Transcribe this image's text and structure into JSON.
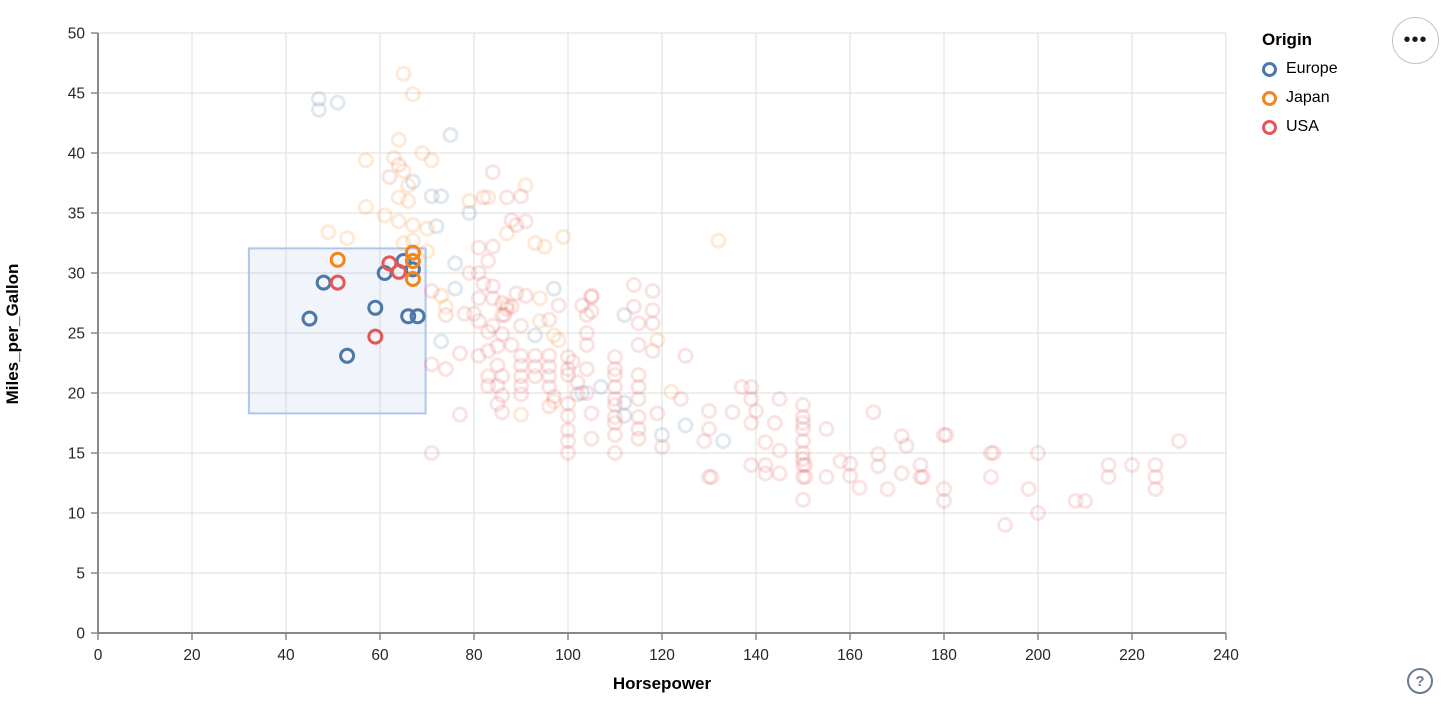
{
  "widgets": {
    "menu_button_glyph": "•••",
    "help_button_glyph": "?"
  },
  "chart_data": {
    "type": "scatter",
    "title": "",
    "xlabel": "Horsepower",
    "ylabel": "Miles_per_Gallon",
    "xlim": [
      0,
      240
    ],
    "ylim": [
      0,
      50
    ],
    "x_ticks": [
      0,
      20,
      40,
      60,
      80,
      100,
      120,
      140,
      160,
      180,
      200,
      220,
      240
    ],
    "y_ticks": [
      0,
      5,
      10,
      15,
      20,
      25,
      30,
      35,
      40,
      45,
      50
    ],
    "grid": true,
    "legend": {
      "title": "Origin",
      "position": "top-right",
      "entries": [
        {
          "label": "Europe",
          "color": "#4c78a8"
        },
        {
          "label": "Japan",
          "color": "#f58518"
        },
        {
          "label": "USA",
          "color": "#e45756"
        }
      ]
    },
    "colors": {
      "E": "#4c78a8",
      "J": "#f58518",
      "U": "#e45756"
    },
    "origin_names": {
      "E": "Europe",
      "J": "Japan",
      "U": "USA"
    },
    "style": {
      "grid_color": "#dddddd",
      "axis_color": "#888888",
      "label_color": "#262626",
      "point_radius": 6.5,
      "point_stroke_width": 3,
      "faded_opacity": 0.17,
      "brush_fill": "rgba(114,159,219,0.10)",
      "brush_stroke": "#aec6ee"
    },
    "brush": {
      "hp": [
        32.1,
        69.7
      ],
      "mpg": [
        18.3,
        32.05
      ]
    },
    "points": [
      [
        45,
        26.2,
        "E"
      ],
      [
        48,
        29.2,
        "E"
      ],
      [
        53,
        23.1,
        "E"
      ],
      [
        59,
        27.1,
        "E"
      ],
      [
        61,
        30,
        "E"
      ],
      [
        65,
        31,
        "E"
      ],
      [
        67,
        30.3,
        "E"
      ],
      [
        66,
        26.4,
        "E"
      ],
      [
        68,
        26.4,
        "E"
      ],
      [
        51,
        31.1,
        "J"
      ],
      [
        67,
        31.7,
        "J"
      ],
      [
        67,
        31,
        "J"
      ],
      [
        67,
        29.5,
        "J"
      ],
      [
        51,
        29.2,
        "U"
      ],
      [
        59,
        24.7,
        "U"
      ],
      [
        62,
        30.8,
        "U"
      ],
      [
        64,
        30.1,
        "U"
      ],
      [
        47,
        44.5,
        "E"
      ],
      [
        47,
        43.6,
        "E"
      ],
      [
        51,
        44.2,
        "E"
      ],
      [
        75,
        41.5,
        "E"
      ],
      [
        67,
        37.6,
        "E"
      ],
      [
        71,
        36.4,
        "E"
      ],
      [
        73,
        36.4,
        "E"
      ],
      [
        72,
        33.9,
        "E"
      ],
      [
        79,
        35,
        "E"
      ],
      [
        76,
        30.8,
        "E"
      ],
      [
        76,
        28.7,
        "E"
      ],
      [
        73,
        24.3,
        "E"
      ],
      [
        93,
        24.8,
        "E"
      ],
      [
        97,
        28.7,
        "E"
      ],
      [
        103,
        20,
        "E"
      ],
      [
        107,
        20.5,
        "E"
      ],
      [
        112,
        26.5,
        "E"
      ],
      [
        112,
        19.2,
        "E"
      ],
      [
        112,
        18.1,
        "E"
      ],
      [
        120,
        16.5,
        "E"
      ],
      [
        125,
        17.3,
        "E"
      ],
      [
        133,
        16,
        "E"
      ],
      [
        65,
        46.6,
        "J"
      ],
      [
        67,
        44.9,
        "J"
      ],
      [
        64,
        41.1,
        "J"
      ],
      [
        69,
        40,
        "J"
      ],
      [
        57,
        39.4,
        "J"
      ],
      [
        63,
        39.6,
        "J"
      ],
      [
        71,
        39.4,
        "J"
      ],
      [
        65,
        38.5,
        "J"
      ],
      [
        66,
        37.3,
        "J"
      ],
      [
        64,
        36.3,
        "J"
      ],
      [
        66,
        36,
        "J"
      ],
      [
        79,
        36,
        "J"
      ],
      [
        83,
        36.3,
        "J"
      ],
      [
        91,
        37.3,
        "J"
      ],
      [
        87,
        33.3,
        "J"
      ],
      [
        49,
        33.4,
        "J"
      ],
      [
        53,
        32.9,
        "J"
      ],
      [
        57,
        35.5,
        "J"
      ],
      [
        61,
        34.8,
        "J"
      ],
      [
        64,
        34.3,
        "J"
      ],
      [
        67,
        34,
        "J"
      ],
      [
        70,
        33.7,
        "J"
      ],
      [
        65,
        32.5,
        "J"
      ],
      [
        67,
        32.7,
        "J"
      ],
      [
        70,
        31.8,
        "J"
      ],
      [
        93,
        32.5,
        "J"
      ],
      [
        95,
        32.2,
        "J"
      ],
      [
        99,
        33,
        "J"
      ],
      [
        132,
        32.7,
        "J"
      ],
      [
        73,
        28.1,
        "J"
      ],
      [
        74,
        27.2,
        "J"
      ],
      [
        87,
        27.3,
        "J"
      ],
      [
        94,
        27.9,
        "J"
      ],
      [
        94,
        26,
        "J"
      ],
      [
        97,
        24.8,
        "J"
      ],
      [
        98,
        24.4,
        "J"
      ],
      [
        90,
        18.2,
        "J"
      ],
      [
        97,
        19.3,
        "J"
      ],
      [
        119,
        24.4,
        "J"
      ],
      [
        122,
        20.1,
        "J"
      ],
      [
        64,
        39,
        "U"
      ],
      [
        62,
        38,
        "U"
      ],
      [
        84,
        38.4,
        "U"
      ],
      [
        90,
        36.4,
        "U"
      ],
      [
        88,
        34.4,
        "U"
      ],
      [
        91,
        34.3,
        "U"
      ],
      [
        82,
        36.3,
        "U"
      ],
      [
        87,
        36.3,
        "U"
      ],
      [
        89,
        34,
        "U"
      ],
      [
        81,
        32.1,
        "U"
      ],
      [
        84,
        32.2,
        "U"
      ],
      [
        83,
        31,
        "U"
      ],
      [
        79,
        30,
        "U"
      ],
      [
        81,
        30,
        "U"
      ],
      [
        82,
        29.1,
        "U"
      ],
      [
        84,
        28.9,
        "U"
      ],
      [
        81,
        27.9,
        "U"
      ],
      [
        84,
        27.9,
        "U"
      ],
      [
        78,
        26.6,
        "U"
      ],
      [
        80,
        26.6,
        "U"
      ],
      [
        87,
        27,
        "U"
      ],
      [
        91,
        28.1,
        "U"
      ],
      [
        81,
        26,
        "U"
      ],
      [
        84,
        25.6,
        "U"
      ],
      [
        90,
        25.6,
        "U"
      ],
      [
        96,
        26.1,
        "U"
      ],
      [
        98,
        27.3,
        "U"
      ],
      [
        103,
        27.3,
        "U"
      ],
      [
        105,
        28.1,
        "U"
      ],
      [
        114,
        29,
        "U"
      ],
      [
        114,
        27.2,
        "U"
      ],
      [
        105,
        28,
        "U"
      ],
      [
        105,
        26.8,
        "U"
      ],
      [
        118,
        28.5,
        "U"
      ],
      [
        118,
        26.9,
        "U"
      ],
      [
        115,
        25.8,
        "U"
      ],
      [
        118,
        25.8,
        "U"
      ],
      [
        71,
        28.5,
        "U"
      ],
      [
        74,
        26.5,
        "U"
      ],
      [
        86,
        27.5,
        "U"
      ],
      [
        89,
        28.3,
        "U"
      ],
      [
        88,
        27.2,
        "U"
      ],
      [
        86,
        26.5,
        "U"
      ],
      [
        86.5,
        26.5,
        "U"
      ],
      [
        71,
        22.4,
        "U"
      ],
      [
        74,
        22,
        "U"
      ],
      [
        77,
        23.3,
        "U"
      ],
      [
        81,
        23.1,
        "U"
      ],
      [
        83,
        25.1,
        "U"
      ],
      [
        86,
        24.9,
        "U"
      ],
      [
        83,
        23.5,
        "U"
      ],
      [
        85,
        23.9,
        "U"
      ],
      [
        88,
        24,
        "U"
      ],
      [
        93,
        23.1,
        "U"
      ],
      [
        93,
        22.2,
        "U"
      ],
      [
        93,
        21.4,
        "U"
      ],
      [
        90,
        23.1,
        "U"
      ],
      [
        90,
        22.3,
        "U"
      ],
      [
        90,
        21.4,
        "U"
      ],
      [
        90,
        20.6,
        "U"
      ],
      [
        90,
        19.9,
        "U"
      ],
      [
        85,
        22.3,
        "U"
      ],
      [
        86,
        21.4,
        "U"
      ],
      [
        85,
        20.6,
        "U"
      ],
      [
        86,
        19.8,
        "U"
      ],
      [
        85,
        19.1,
        "U"
      ],
      [
        86,
        18.4,
        "U"
      ],
      [
        83,
        21.4,
        "U"
      ],
      [
        83,
        20.6,
        "U"
      ],
      [
        96,
        23.1,
        "U"
      ],
      [
        96,
        22.2,
        "U"
      ],
      [
        96,
        21.4,
        "U"
      ],
      [
        96,
        20.5,
        "U"
      ],
      [
        97,
        19.7,
        "U"
      ],
      [
        96,
        18.9,
        "U"
      ],
      [
        100,
        23,
        "U"
      ],
      [
        100,
        22,
        "U"
      ],
      [
        100,
        21.5,
        "U"
      ],
      [
        104,
        26.5,
        "U"
      ],
      [
        104,
        25,
        "U"
      ],
      [
        104,
        24,
        "U"
      ],
      [
        104,
        22,
        "U"
      ],
      [
        104,
        20,
        "U"
      ],
      [
        101,
        22.6,
        "U"
      ],
      [
        102,
        20.9,
        "U"
      ],
      [
        102,
        19.9,
        "U"
      ],
      [
        125,
        23.1,
        "U"
      ],
      [
        115,
        24,
        "U"
      ],
      [
        118,
        23.5,
        "U"
      ],
      [
        110,
        23,
        "U"
      ],
      [
        110,
        22,
        "U"
      ],
      [
        110,
        21.5,
        "U"
      ],
      [
        110,
        20.5,
        "U"
      ],
      [
        77,
        18.2,
        "U"
      ],
      [
        71,
        15,
        "U"
      ],
      [
        100,
        19.1,
        "U"
      ],
      [
        100,
        18.1,
        "U"
      ],
      [
        100,
        16.9,
        "U"
      ],
      [
        100,
        16,
        "U"
      ],
      [
        100,
        15,
        "U"
      ],
      [
        105,
        18.3,
        "U"
      ],
      [
        105,
        16.2,
        "U"
      ],
      [
        110,
        19.5,
        "U"
      ],
      [
        110,
        19,
        "U"
      ],
      [
        110,
        18,
        "U"
      ],
      [
        110,
        17.5,
        "U"
      ],
      [
        110,
        16.5,
        "U"
      ],
      [
        110,
        15,
        "U"
      ],
      [
        115,
        21.5,
        "U"
      ],
      [
        115,
        20.5,
        "U"
      ],
      [
        115,
        19.5,
        "U"
      ],
      [
        115,
        18,
        "U"
      ],
      [
        115,
        17,
        "U"
      ],
      [
        115,
        16.2,
        "U"
      ],
      [
        124,
        19.5,
        "U"
      ],
      [
        119,
        18.3,
        "U"
      ],
      [
        120,
        15.5,
        "U"
      ],
      [
        130,
        18.5,
        "U"
      ],
      [
        130,
        17,
        "U"
      ],
      [
        129,
        16,
        "U"
      ],
      [
        130,
        13,
        "U"
      ],
      [
        130.5,
        13,
        "U"
      ],
      [
        135,
        18.4,
        "U"
      ],
      [
        137,
        20.5,
        "U"
      ],
      [
        139,
        20.5,
        "U"
      ],
      [
        139,
        19.5,
        "U"
      ],
      [
        140,
        18.5,
        "U"
      ],
      [
        139,
        17.5,
        "U"
      ],
      [
        145,
        19.5,
        "U"
      ],
      [
        144,
        17.5,
        "U"
      ],
      [
        142,
        15.9,
        "U"
      ],
      [
        145,
        15.2,
        "U"
      ],
      [
        139,
        14,
        "U"
      ],
      [
        142,
        14,
        "U"
      ],
      [
        142,
        13.3,
        "U"
      ],
      [
        145,
        13.3,
        "U"
      ],
      [
        150,
        19,
        "U"
      ],
      [
        150,
        18,
        "U"
      ],
      [
        150,
        17.5,
        "U"
      ],
      [
        150,
        17,
        "U"
      ],
      [
        150,
        16,
        "U"
      ],
      [
        150,
        15,
        "U"
      ],
      [
        150,
        14.5,
        "U"
      ],
      [
        150,
        14,
        "U"
      ],
      [
        150.5,
        14,
        "U"
      ],
      [
        150,
        13,
        "U"
      ],
      [
        150.5,
        13,
        "U"
      ],
      [
        150,
        11.1,
        "U"
      ],
      [
        155,
        17,
        "U"
      ],
      [
        158,
        14.3,
        "U"
      ],
      [
        155,
        13,
        "U"
      ],
      [
        160,
        13.1,
        "U"
      ],
      [
        160,
        14.1,
        "U"
      ],
      [
        162,
        12.1,
        "U"
      ],
      [
        165,
        18.4,
        "U"
      ],
      [
        166,
        14.9,
        "U"
      ],
      [
        166,
        13.9,
        "U"
      ],
      [
        168,
        12,
        "U"
      ],
      [
        171,
        16.4,
        "U"
      ],
      [
        172,
        15.6,
        "U"
      ],
      [
        171,
        13.3,
        "U"
      ],
      [
        175,
        14,
        "U"
      ],
      [
        175,
        13,
        "U"
      ],
      [
        175.5,
        13,
        "U"
      ],
      [
        180,
        16.5,
        "U"
      ],
      [
        180.5,
        16.5,
        "U"
      ],
      [
        180,
        12,
        "U"
      ],
      [
        180,
        11,
        "U"
      ],
      [
        190,
        15,
        "U"
      ],
      [
        190.5,
        15,
        "U"
      ],
      [
        190,
        13,
        "U"
      ],
      [
        193,
        9,
        "U"
      ],
      [
        198,
        12,
        "U"
      ],
      [
        200,
        15,
        "U"
      ],
      [
        200,
        10,
        "U"
      ],
      [
        208,
        11,
        "U"
      ],
      [
        210,
        11,
        "U"
      ],
      [
        215,
        14,
        "U"
      ],
      [
        215,
        13,
        "U"
      ],
      [
        220,
        14,
        "U"
      ],
      [
        225,
        14,
        "U"
      ],
      [
        225,
        13,
        "U"
      ],
      [
        225,
        12,
        "U"
      ],
      [
        230,
        16,
        "U"
      ]
    ]
  }
}
